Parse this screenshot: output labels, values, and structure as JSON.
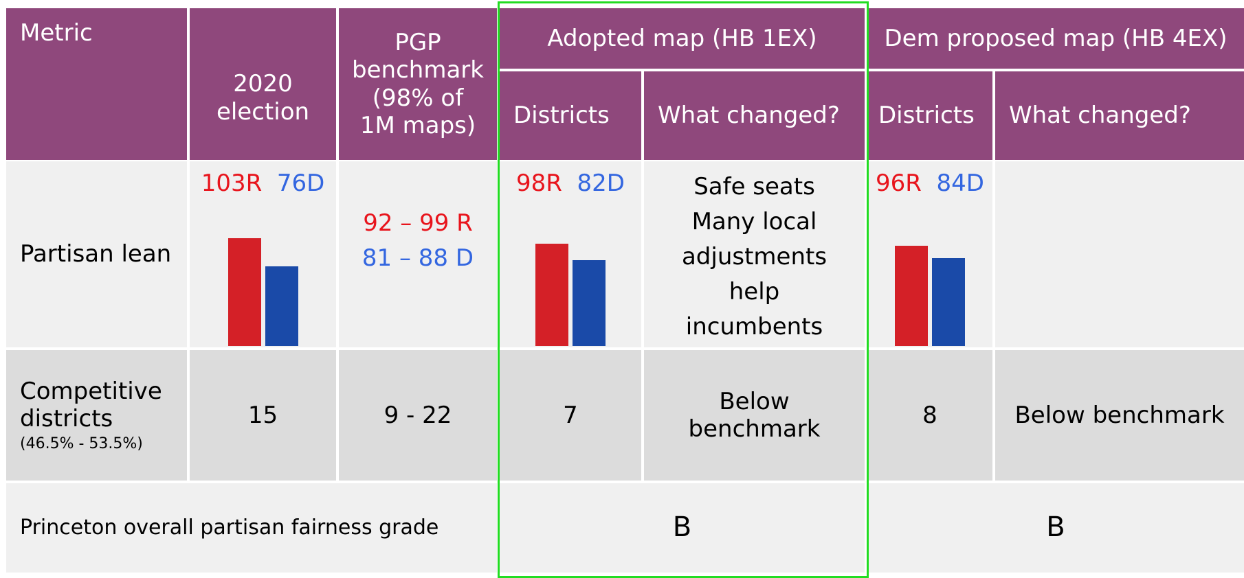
{
  "header": {
    "metric": "Metric",
    "election_2020": "2020\nelection",
    "pgp_benchmark": "PGP\nbenchmark\n(98% of\n1M maps)",
    "adopted_map": "Adopted map (HB 1EX)",
    "adopted_districts": "Districts",
    "adopted_changed": "What changed?",
    "dem_map": "Dem proposed map (HB 4EX)",
    "dem_districts": "Districts",
    "dem_changed": "What changed?"
  },
  "rows": {
    "partisan": {
      "label": "Partisan lean",
      "election_2020": {
        "r": {
          "value": 103,
          "label": "103R"
        },
        "d": {
          "value": 76,
          "label": "76D"
        }
      },
      "pgp_r": "92 – 99 R",
      "pgp_d": "81 – 88 D",
      "adopted": {
        "r": {
          "value": 98,
          "label": "98R"
        },
        "d": {
          "value": 82,
          "label": "82D"
        }
      },
      "adopted_changed": "Safe seats\nMany local\nadjustments\nhelp\nincumbents",
      "dem": {
        "r": {
          "value": 96,
          "label": "96R"
        },
        "d": {
          "value": 84,
          "label": "84D"
        }
      }
    },
    "competitive": {
      "label": "Competitive\ndistricts",
      "note": "(46.5% - 53.5%)",
      "election_2020": 15,
      "pgp": "9 - 22",
      "adopted": 7,
      "adopted_changed": "Below\nbenchmark",
      "dem": 8,
      "dem_changed": "Below benchmark"
    },
    "grade": {
      "label": "Princeton overall partisan fairness grade",
      "adopted": "B",
      "dem": "B"
    }
  }
}
